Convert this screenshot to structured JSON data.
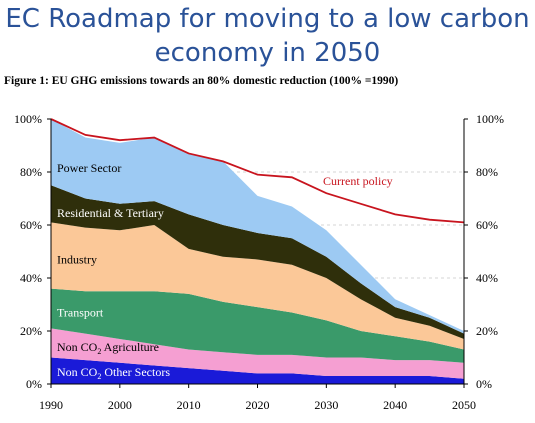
{
  "title": "EC Roadmap for moving to a low carbon economy in 2050",
  "title_line1": "EC Roadmap for moving to a low carbon",
  "title_line2": "economy in 2050",
  "figure_caption": "Figure 1: EU GHG emissions towards an 80% domestic reduction (100% =1990)",
  "colors": {
    "title": "#2a5298",
    "non_co2_other": "#1a1ad8",
    "non_co2_agriculture": "#f59fd2",
    "transport": "#3a9a6a",
    "industry": "#fbc898",
    "residential_tertiary": "#2f2f0b",
    "power_sector": "#9dcaf3",
    "current_policy": "#c8141e"
  },
  "chart_data": {
    "type": "area",
    "stacked": true,
    "x": [
      1990,
      1995,
      2000,
      2005,
      2010,
      2015,
      2020,
      2025,
      2030,
      2035,
      2040,
      2045,
      2050
    ],
    "xlim": [
      1990,
      2050
    ],
    "ylim": [
      0,
      100
    ],
    "y_unit": "%",
    "grid": true,
    "x_ticks": [
      1990,
      2000,
      2010,
      2020,
      2030,
      2040,
      2050
    ],
    "x_tick_labels": [
      "1990",
      "2000",
      "2010",
      "2020",
      "2030",
      "2040",
      "2050"
    ],
    "y_ticks": [
      0,
      20,
      40,
      60,
      80,
      100
    ],
    "y_tick_labels": [
      "0%",
      "20%",
      "40%",
      "60%",
      "80%",
      "100%"
    ],
    "series": [
      {
        "name": "Non CO₂ Other Sectors",
        "name_base": "Non CO",
        "name_sub": "2",
        "name_rest": " Other Sectors",
        "values": [
          10,
          9,
          8,
          7,
          6,
          5,
          4,
          4,
          3,
          3,
          3,
          3,
          2
        ],
        "label_color": "#ffffff"
      },
      {
        "name": "Non CO₂ Agriculture",
        "name_base": "Non CO",
        "name_sub": "2",
        "name_rest": " Agriculture",
        "values": [
          11,
          10,
          9,
          8,
          7,
          7,
          7,
          7,
          7,
          7,
          6,
          6,
          6
        ],
        "label_color": "#000000"
      },
      {
        "name": "Transport",
        "values": [
          15,
          16,
          18,
          20,
          21,
          19,
          18,
          16,
          14,
          10,
          9,
          7,
          5
        ],
        "label_color": "#ffffff"
      },
      {
        "name": "Industry",
        "values": [
          25,
          24,
          23,
          25,
          17,
          17,
          18,
          18,
          16,
          12,
          7,
          6,
          4
        ],
        "label_color": "#000000"
      },
      {
        "name": "Residential & Tertiary",
        "values": [
          14,
          11,
          10,
          9,
          13,
          12,
          10,
          10,
          8,
          6,
          4,
          3,
          2
        ],
        "label_color": "#ffffff"
      },
      {
        "name": "Power Sector",
        "values": [
          25,
          23,
          23,
          24,
          23,
          24,
          14,
          12,
          10,
          7,
          3,
          1,
          1
        ],
        "label_color": "#000000"
      }
    ],
    "lines": [
      {
        "name": "Current policy",
        "values": [
          100,
          94,
          92,
          93,
          87,
          84,
          79,
          78,
          72,
          68,
          64,
          62,
          61
        ]
      }
    ]
  }
}
